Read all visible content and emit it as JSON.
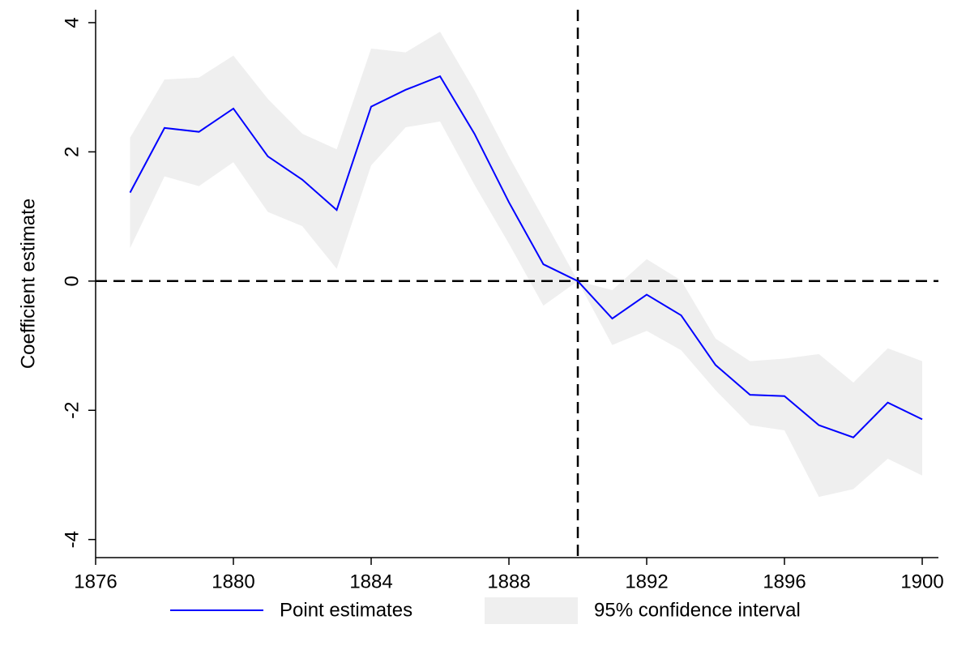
{
  "chart_data": {
    "type": "line",
    "y_label": "Coefficient estimate",
    "x": [
      1877,
      1878,
      1879,
      1880,
      1881,
      1882,
      1883,
      1884,
      1885,
      1886,
      1887,
      1888,
      1889,
      1890,
      1891,
      1892,
      1893,
      1894,
      1895,
      1896,
      1897,
      1898,
      1899,
      1900
    ],
    "series": [
      {
        "name": "Point estimates",
        "color": "#0000ff",
        "values": [
          1.37,
          2.37,
          2.31,
          2.67,
          1.93,
          1.57,
          1.1,
          2.7,
          2.96,
          3.17,
          2.28,
          1.22,
          0.26,
          0,
          -0.58,
          -0.21,
          -0.53,
          -1.3,
          -1.76,
          -1.78,
          -2.23,
          -2.42,
          -1.88,
          -2.14
        ]
      },
      {
        "name": "95% confidence interval",
        "color": "#efefef",
        "upper": [
          2.22,
          3.12,
          3.15,
          3.49,
          2.82,
          2.28,
          2.04,
          3.6,
          3.54,
          3.86,
          2.95,
          1.93,
          0.97,
          0,
          -0.14,
          0.34,
          0.01,
          -0.89,
          -1.24,
          -1.2,
          -1.13,
          -1.57,
          -1.04,
          -1.24
        ],
        "lower": [
          0.51,
          1.62,
          1.47,
          1.84,
          1.07,
          0.85,
          0.19,
          1.79,
          2.38,
          2.47,
          1.49,
          0.58,
          -0.38,
          0,
          -0.99,
          -0.77,
          -1.07,
          -1.69,
          -2.23,
          -2.31,
          -3.34,
          -3.22,
          -2.75,
          -3.01
        ]
      }
    ],
    "xlim": [
      1876,
      1900.47
    ],
    "xticks": [
      1876,
      1880,
      1884,
      1888,
      1892,
      1896,
      1900
    ],
    "ylim": [
      -4.28,
      4.2
    ],
    "yticks": [
      -4,
      -2,
      0,
      2,
      4
    ],
    "vlines": [
      1890
    ],
    "hlines": [
      0
    ]
  }
}
